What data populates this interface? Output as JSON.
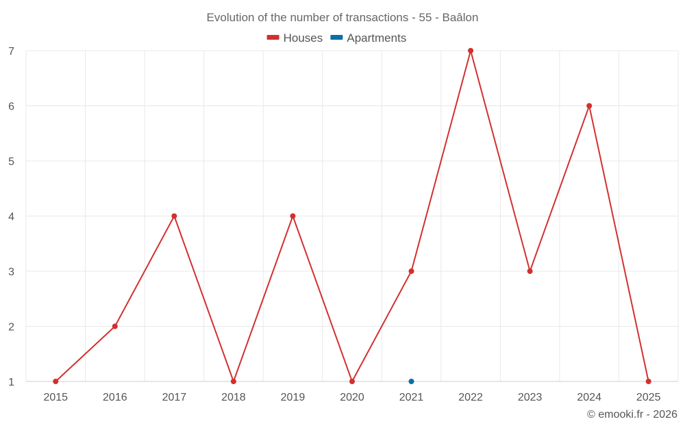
{
  "chart_data": {
    "type": "line",
    "title": "Evolution of the number of transactions - 55 - Baâlon",
    "x": [
      "2015",
      "2016",
      "2017",
      "2018",
      "2019",
      "2020",
      "2021",
      "2022",
      "2023",
      "2024",
      "2025"
    ],
    "ylim": [
      1,
      7
    ],
    "yticks": [
      "1",
      "2",
      "3",
      "4",
      "5",
      "6",
      "7"
    ],
    "grid": true,
    "legend_position": "top-center",
    "series": [
      {
        "name": "Houses",
        "color": "#d32f2f",
        "values": [
          1,
          2,
          4,
          1,
          4,
          1,
          3,
          7,
          3,
          6,
          1
        ]
      },
      {
        "name": "Apartments",
        "color": "#0b6ea6",
        "values": [
          null,
          null,
          null,
          null,
          null,
          null,
          1,
          null,
          null,
          null,
          null
        ]
      }
    ]
  },
  "credit": "© emooki.fr - 2026"
}
